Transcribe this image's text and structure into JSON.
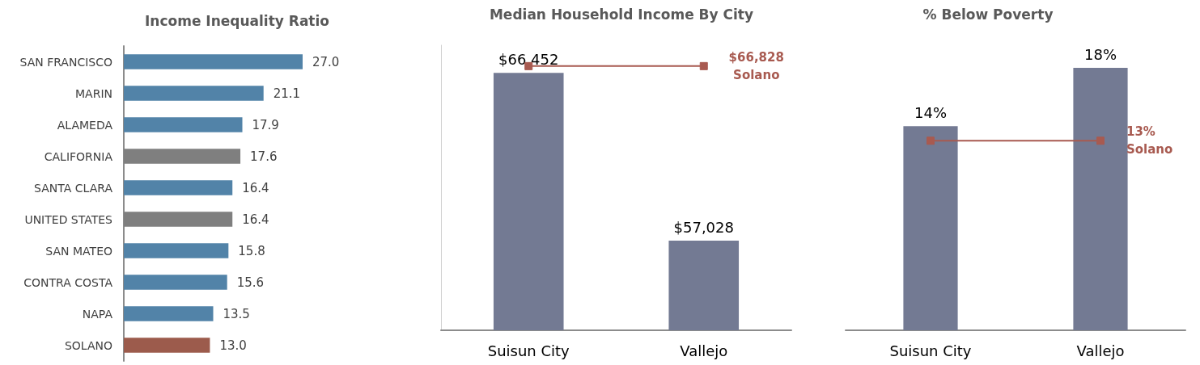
{
  "chart_data": [
    {
      "type": "bar",
      "title": "Income Inequality Ratio",
      "orientation": "horizontal",
      "categories": [
        "SAN FRANCISCO",
        "MARIN",
        "ALAMEDA",
        "CALIFORNIA",
        "SANTA CLARA",
        "UNITED STATES",
        "SAN MATEO",
        "CONTRA COSTA",
        "NAPA",
        "SOLANO"
      ],
      "values": [
        27.0,
        21.1,
        17.9,
        17.6,
        16.4,
        16.4,
        15.8,
        15.6,
        13.5,
        13.0
      ],
      "value_labels": [
        "27.0",
        "21.1",
        "17.9",
        "17.6",
        "16.4",
        "16.4",
        "15.8",
        "15.6",
        "13.5",
        "13.0"
      ],
      "colors": [
        "#5283a8",
        "#5283a8",
        "#5283a8",
        "#7f7f7f",
        "#5283a8",
        "#7f7f7f",
        "#5283a8",
        "#5283a8",
        "#5283a8",
        "#9c5b4c"
      ],
      "tick_labels": "y"
    },
    {
      "type": "bar",
      "title": "Median Household Income By City",
      "categories": [
        "Suisun City",
        "Vallejo"
      ],
      "series": [
        {
          "color": "#737a93",
          "values": [
            66452,
            57028
          ],
          "value_labels": [
            "$66,452",
            "$57,028"
          ]
        },
        {
          "type": "line",
          "name": "Solano",
          "color": "#a85a50",
          "values": [
            66828,
            66828
          ],
          "value_labels": [
            null,
            "$66,828"
          ]
        }
      ],
      "marker": "square",
      "ylim": [
        52000,
        68000
      ],
      "tick_labels": "x"
    },
    {
      "type": "bar",
      "title": "% Below Poverty",
      "categories": [
        "Suisun City",
        "Vallejo"
      ],
      "series": [
        {
          "color": "#737a93",
          "values": [
            14,
            18
          ],
          "value_labels": [
            "14%",
            "18%"
          ]
        },
        {
          "type": "line",
          "name": "Solano",
          "color": "#a85a50",
          "values": [
            13,
            13
          ],
          "value_labels": [
            null,
            "13%"
          ]
        }
      ],
      "marker": "square",
      "tick_labels": "x"
    }
  ]
}
